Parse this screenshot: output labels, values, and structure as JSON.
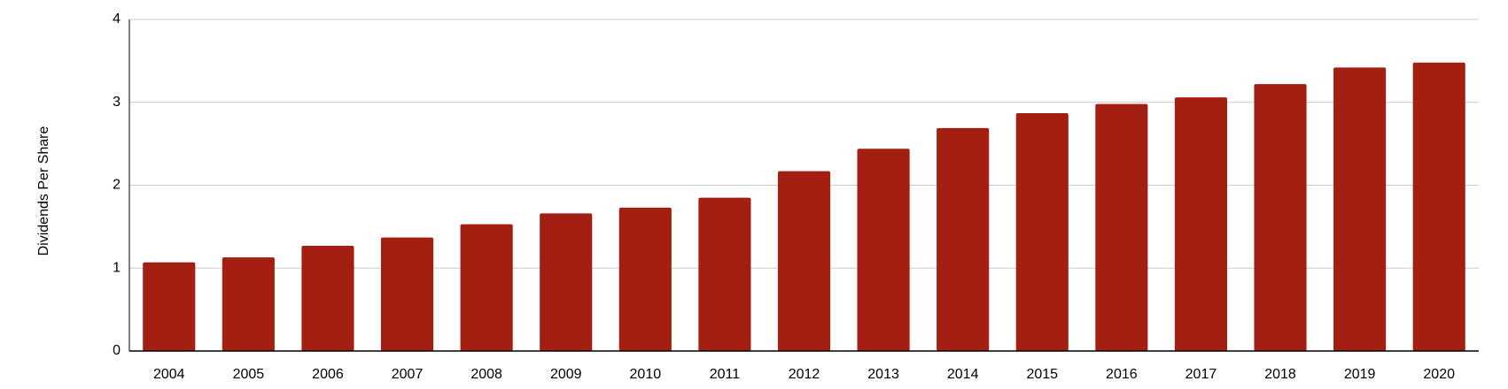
{
  "chart_data": {
    "type": "bar",
    "y_label": "Dividends Per Share",
    "categories": [
      "2004",
      "2005",
      "2006",
      "2007",
      "2008",
      "2009",
      "2010",
      "2011",
      "2012",
      "2013",
      "2014",
      "2015",
      "2016",
      "2017",
      "2018",
      "2019",
      "2020"
    ],
    "values": [
      1.07,
      1.13,
      1.27,
      1.37,
      1.53,
      1.66,
      1.73,
      1.85,
      2.17,
      2.44,
      2.69,
      2.87,
      2.98,
      3.06,
      3.22,
      3.42,
      3.48
    ],
    "color": "#a31f12",
    "ylim": [
      0,
      4
    ],
    "yticks": [
      0,
      1,
      2,
      3,
      4
    ],
    "grid": true
  }
}
